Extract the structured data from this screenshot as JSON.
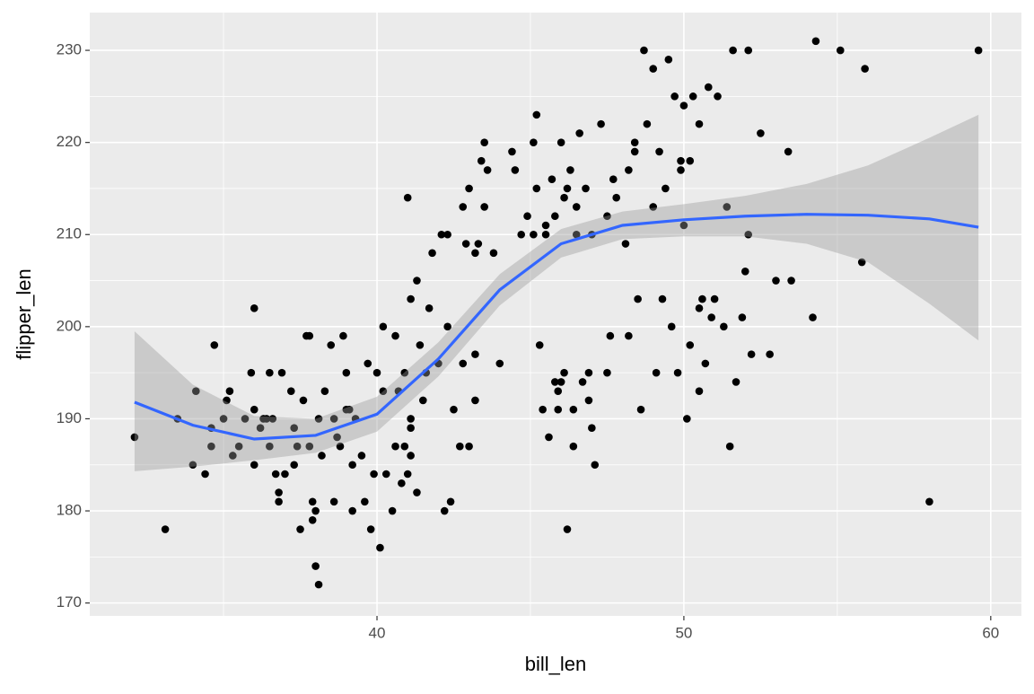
{
  "chart_data": {
    "type": "scatter",
    "xlabel": "bill_len",
    "ylabel": "flipper_len",
    "xlim": [
      30.64,
      61.0
    ],
    "ylim": [
      168.6,
      234.1
    ],
    "xticks": [
      40,
      50,
      60
    ],
    "yticks": [
      170,
      180,
      190,
      200,
      210,
      220,
      230
    ],
    "xminor": [
      35,
      45,
      55
    ],
    "yminor": [
      175,
      185,
      195,
      205,
      215,
      225
    ],
    "grid": true,
    "background": "#ebebeb",
    "series": [
      {
        "color": "#000000",
        "x": [
          32.1,
          33.1,
          33.5,
          34,
          34.1,
          34.4,
          34.6,
          34.6,
          34.7,
          35,
          35.1,
          35.2,
          35.3,
          35.5,
          35.7,
          35.9,
          36,
          36,
          36,
          36.2,
          36.3,
          36.5,
          36.5,
          36.6,
          36.7,
          36.8,
          36.8,
          36.9,
          37,
          37.2,
          37.3,
          37.3,
          37.5,
          37.6,
          37.7,
          37.8,
          37.8,
          37.9,
          37.9,
          38,
          38.1,
          38,
          38.1,
          38.2,
          38.3,
          38.5,
          38.6,
          38.6,
          38.8,
          38.9,
          39,
          39,
          39.2,
          39.3,
          39.5,
          39.6,
          39.7,
          39.8,
          40,
          40.2,
          40.3,
          40.6,
          39.9,
          39.2,
          39.1,
          38.7,
          37.4,
          36.4,
          40.1,
          40.2,
          40.5,
          40.6,
          40.7,
          40.8,
          40.9,
          41,
          41,
          41.1,
          41.1,
          41.3,
          41.4,
          41.5,
          41.6,
          41.7,
          41.8,
          42,
          42.1,
          42.2,
          42.3,
          42.4,
          42.5,
          42.7,
          42.8,
          42.8,
          43,
          43.2,
          43.2,
          43.3,
          43.4,
          43.5,
          43.5,
          43.6,
          43.8,
          44,
          42.9,
          43.2,
          43,
          41.1,
          41.1,
          41.3,
          40.9,
          42.3,
          44.4,
          44.5,
          44.7,
          44.9,
          45.1,
          45.2,
          45.2,
          45.3,
          45.4,
          45.5,
          45.5,
          45.6,
          45.7,
          45.8,
          45.8,
          45.9,
          46,
          46.1,
          46.1,
          46.2,
          46.3,
          46.4,
          46.5,
          46.6,
          46.8,
          46.9,
          47,
          47.1,
          47.3,
          47.5,
          47.6,
          47.7,
          47.8,
          48.1,
          48.2,
          48.4,
          48.5,
          48.6,
          48.7,
          48.8,
          49,
          49.1,
          49.2,
          49.3,
          49.5,
          49.6,
          49.7,
          49.8,
          49.9,
          50,
          50.1,
          50.2,
          50.3,
          50.5,
          50.6,
          50.8,
          50.9,
          51,
          51.1,
          51.3,
          51.4,
          51.5,
          51.6,
          51.7,
          52,
          52.1,
          52.2,
          52.5,
          52.8,
          53,
          53.4,
          53.5,
          54.2,
          54.3,
          55.1,
          55.8,
          55.9,
          58,
          59.6,
          46,
          45.9,
          46.4,
          46.7,
          46.9,
          47,
          47.5,
          45.1,
          46.2,
          46.5,
          48.4,
          48.2,
          49.9,
          50.2,
          49,
          49.4,
          50,
          51.9,
          52.1,
          50.5,
          50.7,
          50.5
        ],
        "values": [
          188,
          178,
          190,
          185,
          193,
          184,
          187,
          189,
          198,
          190,
          192,
          193,
          186,
          187,
          190,
          195,
          191,
          202,
          185,
          189,
          190,
          195,
          187,
          190,
          184,
          182,
          181,
          195,
          184,
          193,
          189,
          185,
          178,
          192,
          199,
          199,
          187,
          181,
          179,
          174,
          172,
          180,
          190,
          186,
          193,
          198,
          190,
          181,
          187,
          199,
          191,
          195,
          180,
          190,
          186,
          181,
          196,
          178,
          195,
          193,
          184,
          187,
          184,
          185,
          191,
          188,
          187,
          190,
          176,
          200,
          180,
          199,
          193,
          183,
          195,
          184,
          214,
          203,
          190,
          205,
          198,
          192,
          195,
          202,
          208,
          196,
          210,
          180,
          210,
          181,
          191,
          187,
          196,
          213,
          215,
          192,
          208,
          209,
          218,
          213,
          220,
          217,
          208,
          196,
          209,
          197,
          187,
          189,
          186,
          182,
          187,
          200,
          219,
          217,
          210,
          212,
          220,
          215,
          223,
          198,
          191,
          211,
          210,
          188,
          216,
          212,
          194,
          191,
          220,
          195,
          214,
          178,
          217,
          187,
          210,
          221,
          215,
          195,
          189,
          185,
          222,
          212,
          199,
          216,
          214,
          209,
          199,
          220,
          203,
          191,
          230,
          222,
          228,
          195,
          219,
          203,
          229,
          200,
          225,
          195,
          217,
          224,
          190,
          198,
          225,
          222,
          203,
          226,
          201,
          203,
          225,
          200,
          213,
          187,
          230,
          194,
          206,
          230,
          197,
          221,
          197,
          205,
          219,
          205,
          201,
          231,
          230,
          207,
          228,
          181,
          230,
          194,
          193,
          191,
          194,
          192,
          210,
          195,
          210,
          215,
          213,
          219,
          217,
          218,
          218,
          213,
          215,
          211,
          201,
          210,
          202,
          196,
          193
        ]
      }
    ],
    "smooth": {
      "color": "#3366ff",
      "fill": "#999999",
      "x": [
        32.1,
        34,
        36,
        38,
        40,
        42,
        44,
        46,
        48,
        50,
        52,
        54,
        56,
        58,
        59.6
      ],
      "y": [
        191.8,
        189.3,
        187.8,
        188.2,
        190.5,
        196.5,
        204,
        209,
        211,
        211.6,
        212,
        212.2,
        212.1,
        211.7,
        210.8
      ],
      "lower": [
        184.3,
        184.8,
        185.5,
        186.3,
        188.6,
        194.6,
        202.3,
        207.5,
        209.5,
        209.8,
        209.8,
        209,
        207,
        202.5,
        198.5
      ],
      "upper": [
        199.5,
        193.7,
        190.3,
        190,
        192.4,
        198.3,
        205.7,
        210.6,
        212.5,
        213.3,
        214.2,
        215.5,
        217.5,
        220.5,
        223
      ]
    }
  }
}
